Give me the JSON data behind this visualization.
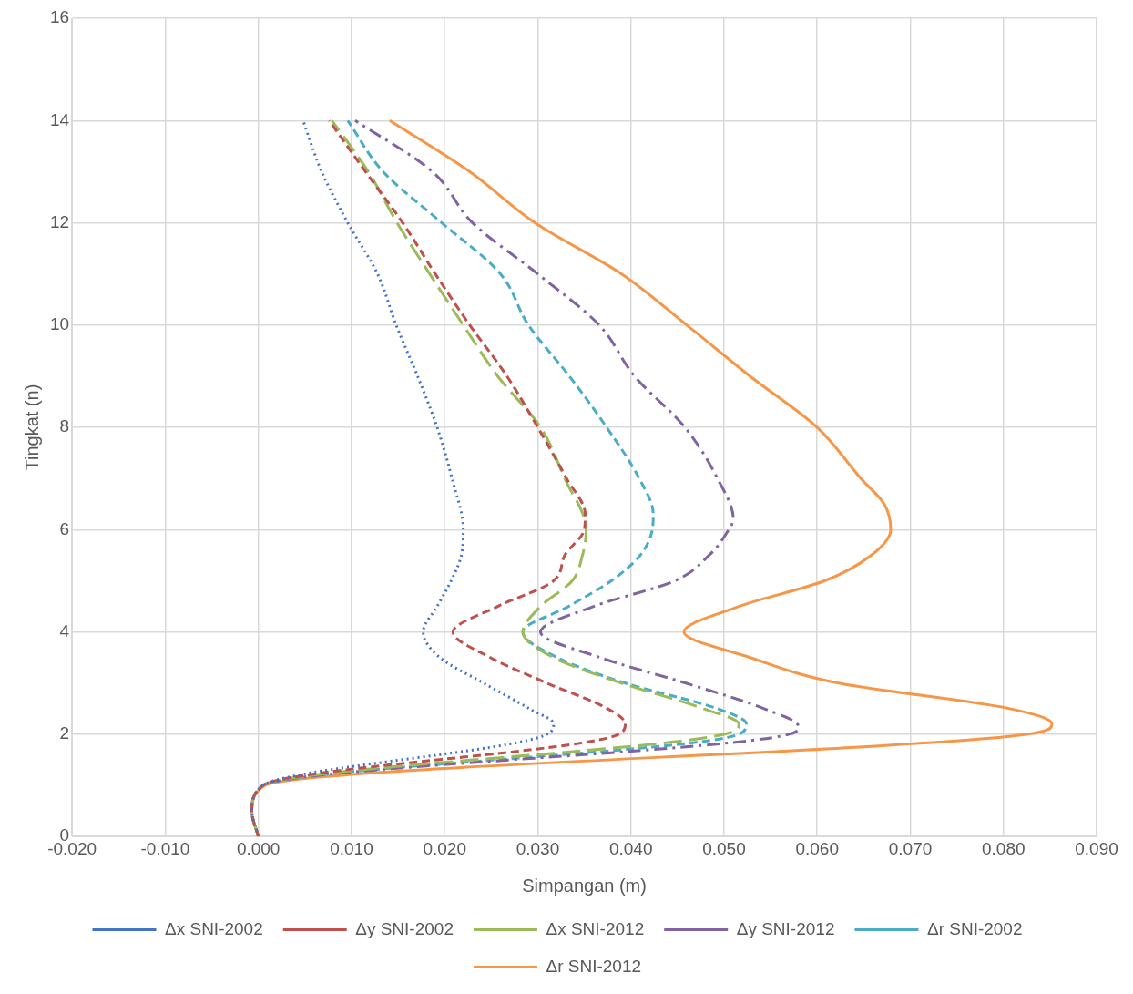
{
  "chart_data": {
    "type": "line",
    "xlabel": "Simpangan (m)",
    "ylabel": "Tingkat (n)",
    "xlim": [
      -0.02,
      0.09
    ],
    "xticks": [
      {
        "value": -0.02,
        "label": "-0.020"
      },
      {
        "value": -0.01,
        "label": "-0.010"
      },
      {
        "value": 0,
        "label": "0.000"
      },
      {
        "value": 0.01,
        "label": "0.010"
      },
      {
        "value": 0.02,
        "label": "0.020"
      },
      {
        "value": 0.03,
        "label": "0.030"
      },
      {
        "value": 0.04,
        "label": "0.040"
      },
      {
        "value": 0.05,
        "label": "0.050"
      },
      {
        "value": 0.06,
        "label": "0.060"
      },
      {
        "value": 0.07,
        "label": "0.070"
      },
      {
        "value": 0.08,
        "label": "0.080"
      },
      {
        "value": 0.09,
        "label": "0.090"
      }
    ],
    "ylim": [
      0,
      16
    ],
    "yticks": [
      0,
      2,
      4,
      6,
      8,
      10,
      12,
      14,
      16
    ],
    "grid": true,
    "legend": "bottom",
    "marker": "none",
    "series": [
      {
        "name": "Δx SNI-2002",
        "color": "#4472c4",
        "line_style": "dotted",
        "x": [
          0,
          -0.0007,
          0.0005,
          0.031,
          0.0317,
          0.0291,
          0.0242,
          0.0195,
          0.0177,
          0.0192,
          0.0207,
          0.0218,
          0.022,
          0.0208,
          0.0192,
          0.0171,
          0.0148,
          0.0128,
          0.0096,
          0.0068,
          0.0048
        ],
        "values": [
          0,
          0.5,
          1,
          2,
          2.2,
          2.5,
          3,
          3.5,
          4,
          4.5,
          5,
          5.5,
          6,
          7,
          8,
          9,
          10,
          11,
          12,
          13,
          14
        ]
      },
      {
        "name": "Δy SNI-2002",
        "color": "#c0504d",
        "line_style": "dashed",
        "x": [
          0,
          -0.0007,
          0.0005,
          0.0387,
          0.0394,
          0.0375,
          0.031,
          0.0249,
          0.0209,
          0.0257,
          0.0317,
          0.0329,
          0.035,
          0.0351,
          0.0331,
          0.03,
          0.0267,
          0.0227,
          0.019,
          0.0155,
          0.0115,
          0.0076
        ],
        "values": [
          0,
          0.5,
          1,
          2,
          2.2,
          2.5,
          3,
          3.5,
          4,
          4.5,
          5,
          5.5,
          6,
          6.3,
          7,
          8,
          9,
          10,
          11,
          12,
          13,
          14
        ]
      },
      {
        "name": "Δx SNI-2012",
        "color": "#9bbb59",
        "line_style": "dashed",
        "x": [
          0,
          -0.0007,
          0.0005,
          0.05,
          0.0516,
          0.0478,
          0.039,
          0.0317,
          0.0284,
          0.0303,
          0.0337,
          0.0348,
          0.0352,
          0.0329,
          0.0303,
          0.0257,
          0.022,
          0.0184,
          0.0149,
          0.0118,
          0.0079
        ],
        "values": [
          0,
          0.5,
          1,
          2,
          2.2,
          2.5,
          3,
          3.5,
          4,
          4.5,
          5,
          5.5,
          6,
          7,
          8,
          9,
          10,
          11,
          12,
          13,
          14
        ]
      },
      {
        "name": "Δy SNI-2012",
        "color": "#8064a2",
        "line_style": "dashed",
        "x": [
          0,
          -0.0007,
          0.0005,
          0.057,
          0.058,
          0.0543,
          0.0459,
          0.0367,
          0.0303,
          0.036,
          0.0447,
          0.0484,
          0.0505,
          0.051,
          0.0493,
          0.0458,
          0.0404,
          0.0366,
          0.03,
          0.023,
          0.0187,
          0.0104
        ],
        "values": [
          0,
          0.5,
          1,
          2,
          2.15,
          2.5,
          3,
          3.5,
          4,
          4.5,
          5,
          5.5,
          6,
          6.2,
          7,
          8,
          9,
          10,
          11,
          12,
          13,
          14
        ]
      },
      {
        "name": "Δr SNI-2002",
        "color": "#4bacc6",
        "line_style": "dashed",
        "x": [
          0,
          -0.0007,
          0.0005,
          0.0516,
          0.0524,
          0.0493,
          0.0394,
          0.0321,
          0.0284,
          0.0333,
          0.0379,
          0.041,
          0.0423,
          0.0424,
          0.0409,
          0.0374,
          0.0334,
          0.029,
          0.026,
          0.0197,
          0.0134,
          0.0096
        ],
        "values": [
          0,
          0.5,
          1,
          2,
          2.2,
          2.5,
          3,
          3.5,
          4,
          4.5,
          5,
          5.5,
          6,
          6.3,
          7,
          8,
          9,
          10,
          11,
          12,
          13,
          14
        ]
      },
      {
        "name": "Δr SNI-2012",
        "color": "#f79646",
        "line_style": "solid",
        "x": [
          0,
          -0.0007,
          0.0007,
          0.0825,
          0.0852,
          0.0807,
          0.0623,
          0.0528,
          0.0457,
          0.0516,
          0.0608,
          0.0658,
          0.0679,
          0.0672,
          0.0647,
          0.06,
          0.0528,
          0.046,
          0.039,
          0.0297,
          0.0227,
          0.0141
        ],
        "values": [
          0,
          0.5,
          1,
          2,
          2.2,
          2.5,
          3,
          3.5,
          4,
          4.5,
          5,
          5.5,
          6,
          6.5,
          7,
          8,
          9,
          10,
          11,
          12,
          13,
          14
        ]
      }
    ]
  }
}
